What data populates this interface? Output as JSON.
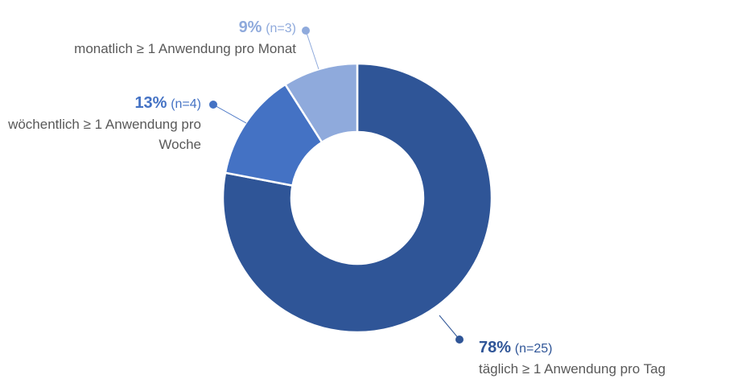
{
  "chart_data": {
    "type": "donut",
    "categories": [
      "täglich ≥ 1 Anwendung pro Tag",
      "wöchentlich ≥ 1 Anwendung pro Woche",
      "monatlich ≥ 1 Anwendung pro Monat"
    ],
    "values": [
      78,
      13,
      9
    ],
    "value_labels": [
      "78%",
      "13%",
      "9%"
    ],
    "n_labels": [
      "(n=25)",
      "(n=4)",
      "(n=3)"
    ],
    "colors": [
      "#2f5597",
      "#4472c4",
      "#8faadc"
    ]
  }
}
